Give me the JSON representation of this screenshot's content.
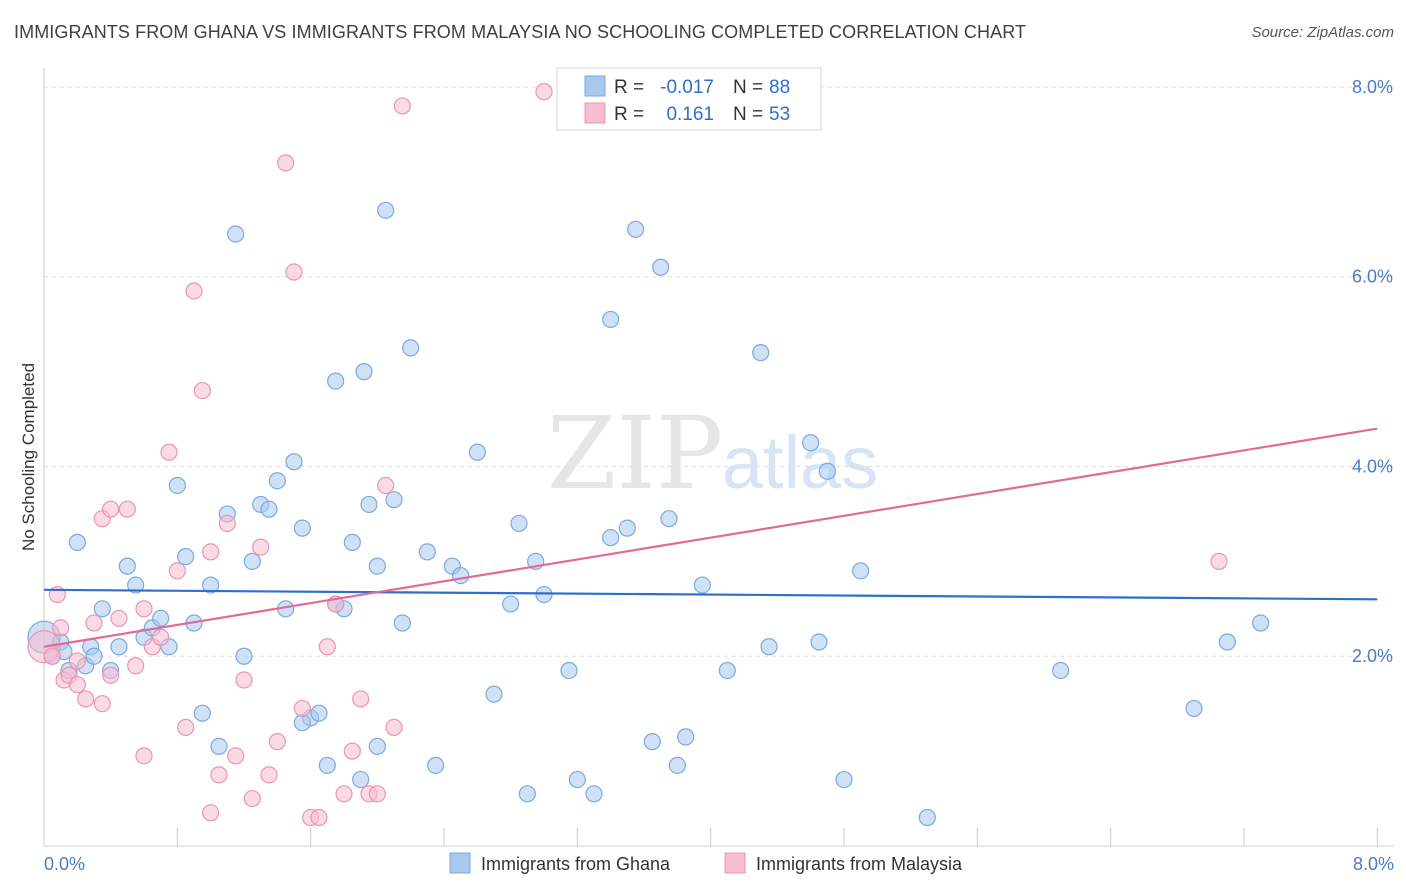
{
  "title": "IMMIGRANTS FROM GHANA VS IMMIGRANTS FROM MALAYSIA NO SCHOOLING COMPLETED CORRELATION CHART",
  "source": "Source: ZipAtlas.com",
  "watermark": {
    "zip": "ZIP",
    "atlas": "atlas"
  },
  "colors": {
    "ghana_fill": "#a9c8ee",
    "ghana_stroke": "#7aaadf",
    "ghana_line": "#2f6fcb",
    "malaysia_fill": "#f6bcd0",
    "malaysia_stroke": "#ec94b3",
    "malaysia_line": "#e06b99",
    "tick_label": "#4a7cc4",
    "grid": "#dddddd"
  },
  "stats_legend": {
    "r_label": "R =",
    "n_label": "N =",
    "ghana": {
      "r": "-0.017",
      "n": "88"
    },
    "malaysia": {
      "r": "0.161",
      "n": "53"
    }
  },
  "chart_data": {
    "type": "scatter",
    "title": "IMMIGRANTS FROM GHANA VS IMMIGRANTS FROM MALAYSIA NO SCHOOLING COMPLETED CORRELATION CHART",
    "xlabel": "",
    "ylabel": "No Schooling Completed",
    "xlim": [
      0,
      8.1
    ],
    "ylim": [
      0,
      8.2
    ],
    "x_tick_labels": [
      {
        "value": 0,
        "label": "0.0%"
      },
      {
        "value": 8,
        "label": "8.0%"
      }
    ],
    "y_tick_labels": [
      {
        "value": 2,
        "label": "2.0%"
      },
      {
        "value": 4,
        "label": "4.0%"
      },
      {
        "value": 6,
        "label": "6.0%"
      },
      {
        "value": 8,
        "label": "8.0%"
      }
    ],
    "legend": [
      "Immigrants from Ghana",
      "Immigrants from Malaysia"
    ],
    "series": [
      {
        "name": "Immigrants from Ghana",
        "trend": {
          "x": [
            0,
            8
          ],
          "y": [
            2.7,
            2.6
          ]
        },
        "points": [
          [
            0.0,
            2.2
          ],
          [
            0.05,
            2.0
          ],
          [
            0.1,
            2.15
          ],
          [
            0.12,
            2.05
          ],
          [
            0.15,
            1.85
          ],
          [
            0.2,
            3.2
          ],
          [
            0.25,
            1.9
          ],
          [
            0.28,
            2.1
          ],
          [
            0.3,
            2.0
          ],
          [
            0.35,
            2.5
          ],
          [
            0.4,
            1.85
          ],
          [
            0.45,
            2.1
          ],
          [
            0.5,
            2.95
          ],
          [
            0.55,
            2.75
          ],
          [
            0.6,
            2.2
          ],
          [
            0.65,
            2.3
          ],
          [
            0.7,
            2.4
          ],
          [
            0.75,
            2.1
          ],
          [
            0.8,
            3.8
          ],
          [
            0.85,
            3.05
          ],
          [
            0.9,
            2.35
          ],
          [
            0.95,
            1.4
          ],
          [
            1.0,
            2.75
          ],
          [
            1.05,
            1.05
          ],
          [
            1.1,
            3.5
          ],
          [
            1.15,
            6.45
          ],
          [
            1.2,
            2.0
          ],
          [
            1.25,
            3.0
          ],
          [
            1.3,
            3.6
          ],
          [
            1.35,
            3.55
          ],
          [
            1.4,
            3.85
          ],
          [
            1.45,
            2.5
          ],
          [
            1.5,
            4.05
          ],
          [
            1.55,
            3.35
          ],
          [
            1.6,
            1.35
          ],
          [
            1.65,
            1.4
          ],
          [
            1.7,
            0.85
          ],
          [
            1.75,
            4.9
          ],
          [
            1.8,
            2.5
          ],
          [
            1.85,
            3.2
          ],
          [
            1.9,
            0.7
          ],
          [
            1.92,
            5.0
          ],
          [
            1.95,
            3.6
          ],
          [
            2.0,
            2.95
          ],
          [
            2.05,
            6.7
          ],
          [
            2.1,
            3.65
          ],
          [
            2.15,
            2.35
          ],
          [
            2.2,
            5.25
          ],
          [
            2.3,
            3.1
          ],
          [
            2.35,
            0.85
          ],
          [
            2.45,
            2.95
          ],
          [
            2.5,
            2.85
          ],
          [
            2.6,
            4.15
          ],
          [
            2.7,
            1.6
          ],
          [
            2.8,
            2.55
          ],
          [
            2.85,
            3.4
          ],
          [
            2.9,
            0.55
          ],
          [
            2.95,
            3.0
          ],
          [
            3.0,
            2.65
          ],
          [
            3.2,
            0.7
          ],
          [
            3.3,
            0.55
          ],
          [
            3.4,
            3.25
          ],
          [
            3.5,
            3.35
          ],
          [
            3.55,
            6.5
          ],
          [
            3.65,
            1.1
          ],
          [
            3.75,
            3.45
          ],
          [
            3.8,
            0.85
          ],
          [
            3.85,
            1.15
          ],
          [
            3.95,
            2.75
          ],
          [
            4.1,
            1.85
          ],
          [
            4.3,
            5.2
          ],
          [
            4.35,
            2.1
          ],
          [
            4.6,
            4.25
          ],
          [
            4.65,
            2.15
          ],
          [
            4.7,
            3.95
          ],
          [
            4.8,
            0.7
          ],
          [
            4.9,
            2.9
          ],
          [
            5.3,
            0.3
          ],
          [
            6.1,
            1.85
          ],
          [
            6.9,
            1.45
          ],
          [
            7.1,
            2.15
          ],
          [
            7.3,
            2.35
          ],
          [
            3.15,
            1.85
          ],
          [
            3.7,
            6.1
          ],
          [
            3.4,
            5.55
          ],
          [
            1.75,
            2.55
          ],
          [
            1.55,
            1.3
          ],
          [
            2.0,
            1.05
          ]
        ]
      },
      {
        "name": "Immigrants from Malaysia",
        "trend": {
          "x": [
            0,
            8
          ],
          "y": [
            2.1,
            4.4
          ]
        },
        "points": [
          [
            0.0,
            2.1
          ],
          [
            0.05,
            2.0
          ],
          [
            0.08,
            2.65
          ],
          [
            0.1,
            2.3
          ],
          [
            0.12,
            1.75
          ],
          [
            0.15,
            1.8
          ],
          [
            0.2,
            1.95
          ],
          [
            0.25,
            1.55
          ],
          [
            0.3,
            2.35
          ],
          [
            0.35,
            3.45
          ],
          [
            0.4,
            1.8
          ],
          [
            0.45,
            2.4
          ],
          [
            0.5,
            3.55
          ],
          [
            0.55,
            1.9
          ],
          [
            0.6,
            2.5
          ],
          [
            0.65,
            2.1
          ],
          [
            0.7,
            2.2
          ],
          [
            0.75,
            4.15
          ],
          [
            0.8,
            2.9
          ],
          [
            0.85,
            1.25
          ],
          [
            0.9,
            5.85
          ],
          [
            0.95,
            4.8
          ],
          [
            1.0,
            3.1
          ],
          [
            1.05,
            0.75
          ],
          [
            1.1,
            3.4
          ],
          [
            1.15,
            0.95
          ],
          [
            1.2,
            1.75
          ],
          [
            1.25,
            0.5
          ],
          [
            1.3,
            3.15
          ],
          [
            1.35,
            0.75
          ],
          [
            1.4,
            1.1
          ],
          [
            1.45,
            7.2
          ],
          [
            1.5,
            6.05
          ],
          [
            1.55,
            1.45
          ],
          [
            1.6,
            0.3
          ],
          [
            1.65,
            0.3
          ],
          [
            1.7,
            2.1
          ],
          [
            1.75,
            2.55
          ],
          [
            1.8,
            0.55
          ],
          [
            1.85,
            1.0
          ],
          [
            1.9,
            1.55
          ],
          [
            1.95,
            0.55
          ],
          [
            2.0,
            0.55
          ],
          [
            2.05,
            3.8
          ],
          [
            2.1,
            1.25
          ],
          [
            2.15,
            7.8
          ],
          [
            3.0,
            7.95
          ],
          [
            7.05,
            3.0
          ],
          [
            0.6,
            0.95
          ],
          [
            1.0,
            0.35
          ],
          [
            0.4,
            3.55
          ],
          [
            0.35,
            1.5
          ],
          [
            0.2,
            1.7
          ]
        ]
      }
    ]
  }
}
